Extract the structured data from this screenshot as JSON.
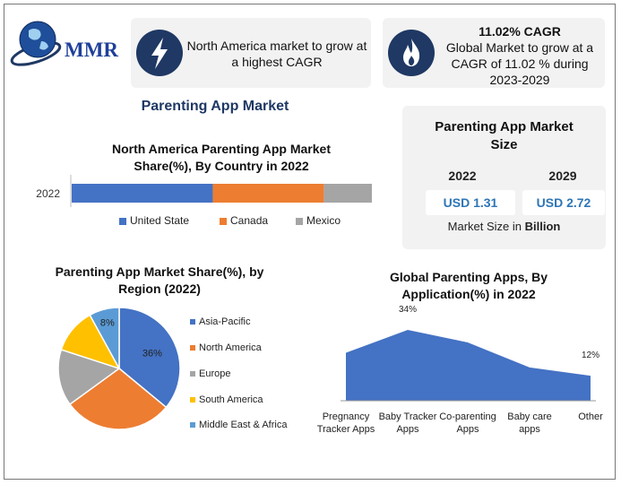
{
  "logo": {
    "text": "MMR"
  },
  "card1": {
    "text_line1": "North America market to grow at",
    "text_line2": "a highest CAGR"
  },
  "card2": {
    "title": "11.02% CAGR",
    "line1": "Global Market to grow at a",
    "line2": "CAGR of 11.02 % during",
    "line3": "2023-2029"
  },
  "main_title": "Parenting App Market",
  "size_card": {
    "title_line1": "Parenting App Market",
    "title_line2": "Size",
    "year1": "2022",
    "year2": "2029",
    "value1": "USD 1.31",
    "value2": "USD 2.72",
    "note_prefix": "Market Size in ",
    "note_unit": "Billion"
  },
  "colors": {
    "blue": "#4472c4",
    "orange": "#ed7d31",
    "gray": "#a5a5a5",
    "yellow": "#ffc000",
    "lightblue": "#5b9bd5",
    "navy": "#1f3864",
    "value_text": "#2e75b6"
  },
  "icons": {
    "card1": "lightning-bolt-icon",
    "card2": "flame-icon",
    "logo": "globe-icon"
  },
  "chart_data": [
    {
      "type": "bar",
      "orientation": "horizontal-stacked",
      "title_line1": "North America Parenting App Market",
      "title_line2": "Share(%), By Country in 2022",
      "categories": [
        "2022"
      ],
      "series": [
        {
          "name": "United State",
          "values": [
            47
          ],
          "color": "#4472c4"
        },
        {
          "name": "Canada",
          "values": [
            37
          ],
          "color": "#ed7d31"
        },
        {
          "name": "Mexico",
          "values": [
            16
          ],
          "color": "#a5a5a5"
        }
      ],
      "legend": "bottom"
    },
    {
      "type": "pie",
      "title_line1": "Parenting App Market Share(%), by",
      "title_line2": "Region (2022)",
      "slices": [
        {
          "name": "Asia-Pacific",
          "value": 36,
          "color": "#4472c4",
          "label": "36%"
        },
        {
          "name": "North America",
          "value": 29,
          "color": "#ed7d31",
          "label": ""
        },
        {
          "name": "Europe",
          "value": 15,
          "color": "#a5a5a5",
          "label": ""
        },
        {
          "name": "South America",
          "value": 12,
          "color": "#ffc000",
          "label": ""
        },
        {
          "name": "Middle East & Africa",
          "value": 8,
          "color": "#5b9bd5",
          "label": "8%"
        }
      ],
      "legend": "right"
    },
    {
      "type": "area",
      "title_line1": "Global Parenting Apps, By",
      "title_line2": "Application(%) in 2022",
      "categories": [
        {
          "line1": "Pregnancy",
          "line2": "Tracker Apps"
        },
        {
          "line1": "Baby Tracker",
          "line2": "Apps"
        },
        {
          "line1": "Co-parenting",
          "line2": "Apps"
        },
        {
          "line1": "Baby care",
          "line2": "apps"
        },
        {
          "line1": "Other",
          "line2": ""
        }
      ],
      "values": [
        23,
        34,
        28,
        16,
        12
      ],
      "data_labels": [
        "",
        "34%",
        "",
        "",
        "12%"
      ],
      "color": "#4472c4"
    }
  ]
}
